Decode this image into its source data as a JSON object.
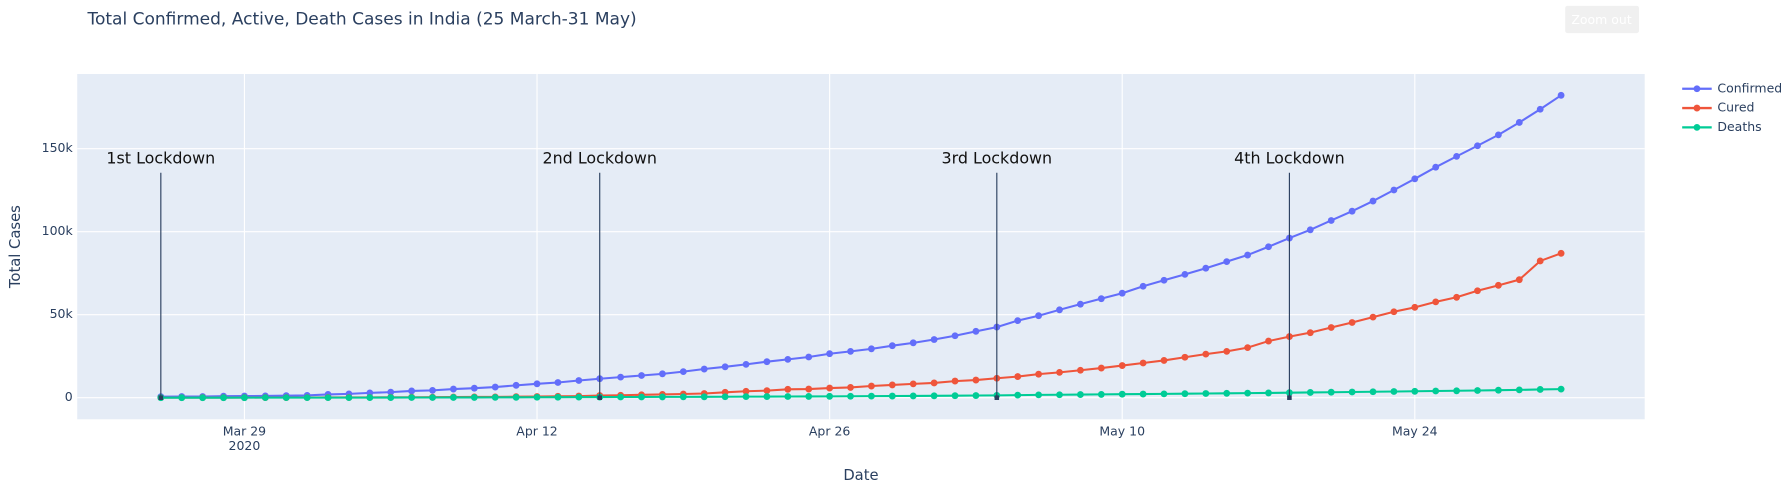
{
  "chart_data": {
    "type": "line",
    "title": "Total Confirmed, Active, Death Cases in India (25 March-31 May)",
    "x_label": "Date",
    "y_label": "Total Cases",
    "zoom_button": "Zoom out",
    "x": [
      "2020-03-25",
      "2020-03-26",
      "2020-03-27",
      "2020-03-28",
      "2020-03-29",
      "2020-03-30",
      "2020-03-31",
      "2020-04-01",
      "2020-04-02",
      "2020-04-03",
      "2020-04-04",
      "2020-04-05",
      "2020-04-06",
      "2020-04-07",
      "2020-04-08",
      "2020-04-09",
      "2020-04-10",
      "2020-04-11",
      "2020-04-12",
      "2020-04-13",
      "2020-04-14",
      "2020-04-15",
      "2020-04-16",
      "2020-04-17",
      "2020-04-18",
      "2020-04-19",
      "2020-04-20",
      "2020-04-21",
      "2020-04-22",
      "2020-04-23",
      "2020-04-24",
      "2020-04-25",
      "2020-04-26",
      "2020-04-27",
      "2020-04-28",
      "2020-04-29",
      "2020-04-30",
      "2020-05-01",
      "2020-05-02",
      "2020-05-03",
      "2020-05-04",
      "2020-05-05",
      "2020-05-06",
      "2020-05-07",
      "2020-05-08",
      "2020-05-09",
      "2020-05-10",
      "2020-05-11",
      "2020-05-12",
      "2020-05-13",
      "2020-05-14",
      "2020-05-15",
      "2020-05-16",
      "2020-05-17",
      "2020-05-18",
      "2020-05-19",
      "2020-05-20",
      "2020-05-21",
      "2020-05-22",
      "2020-05-23",
      "2020-05-24",
      "2020-05-25",
      "2020-05-26",
      "2020-05-27",
      "2020-05-28",
      "2020-05-29",
      "2020-05-30",
      "2020-05-31"
    ],
    "series": [
      {
        "name": "Confirmed",
        "color": "#636efa",
        "values": [
          606,
          694,
          724,
          909,
          1024,
          1071,
          1251,
          1397,
          1965,
          2301,
          2902,
          3374,
          4067,
          4421,
          5194,
          5734,
          6412,
          7447,
          8356,
          9152,
          10363,
          11439,
          12380,
          13387,
          14378,
          15712,
          17265,
          18601,
          20080,
          21700,
          23077,
          24506,
          26496,
          27892,
          29435,
          31332,
          33050,
          35043,
          37336,
          39980,
          42533,
          46433,
          49391,
          52952,
          56342,
          59662,
          62939,
          67152,
          70756,
          74281,
          78003,
          81970,
          85940,
          90927,
          96169,
          101139,
          106750,
          112359,
          118447,
          125101,
          131868,
          138845,
          145380,
          151767,
          158333,
          165799,
          173763,
          182143
        ]
      },
      {
        "name": "Cured",
        "color": "#ef553b",
        "values": [
          43,
          45,
          66,
          80,
          96,
          100,
          102,
          124,
          151,
          169,
          184,
          267,
          292,
          326,
          411,
          473,
          504,
          643,
          716,
          857,
          969,
          1306,
          1489,
          1749,
          2015,
          2231,
          2547,
          3252,
          3870,
          4258,
          5063,
          5210,
          5804,
          6185,
          7027,
          7696,
          8325,
          8889,
          10007,
          10633,
          11707,
          12727,
          14183,
          15267,
          16540,
          17847,
          19358,
          20917,
          22455,
          24386,
          26235,
          27920,
          30153,
          34109,
          36824,
          39174,
          42298,
          45300,
          48534,
          51784,
          54441,
          57721,
          60491,
          64426,
          67692,
          71106,
          82370,
          86984
        ]
      },
      {
        "name": "Deaths",
        "color": "#00cc96",
        "values": [
          10,
          16,
          17,
          19,
          27,
          32,
          32,
          35,
          50,
          56,
          68,
          77,
          109,
          117,
          149,
          166,
          199,
          239,
          273,
          308,
          339,
          377,
          414,
          437,
          480,
          507,
          543,
          590,
          640,
          681,
          718,
          775,
          824,
          872,
          934,
          1007,
          1074,
          1147,
          1218,
          1306,
          1389,
          1568,
          1694,
          1783,
          1886,
          1981,
          2109,
          2206,
          2293,
          2415,
          2549,
          2649,
          2752,
          2872,
          3029,
          3163,
          3303,
          3435,
          3583,
          3720,
          3867,
          4021,
          4167,
          4337,
          4531,
          4706,
          4971,
          5164
        ]
      }
    ],
    "xlim": [
      "2020-03-21",
      "2020-06-04"
    ],
    "xticks": [
      {
        "value": "2020-03-29",
        "label": "Mar 29"
      },
      {
        "value": "2020-04-12",
        "label": "Apr 12"
      },
      {
        "value": "2020-04-26",
        "label": "Apr 26"
      },
      {
        "value": "2020-05-10",
        "label": "May 10"
      },
      {
        "value": "2020-05-24",
        "label": "May 24"
      }
    ],
    "x_year_label": "2020",
    "ylim": [
      -13000,
      195000
    ],
    "yticks": [
      0,
      {
        "value": 50000,
        "label": "50k"
      },
      {
        "value": 100000,
        "label": "100k"
      },
      {
        "value": 150000,
        "label": "150k"
      }
    ],
    "grid": true,
    "legend_position": "right",
    "annotations": [
      {
        "text": "1st Lockdown",
        "x": "2020-03-25",
        "y": 0
      },
      {
        "text": "2nd Lockdown",
        "x": "2020-04-15",
        "y": 0
      },
      {
        "text": "3rd Lockdown",
        "x": "2020-05-04",
        "y": 0
      },
      {
        "text": "4th Lockdown",
        "x": "2020-05-18",
        "y": 0
      }
    ]
  }
}
